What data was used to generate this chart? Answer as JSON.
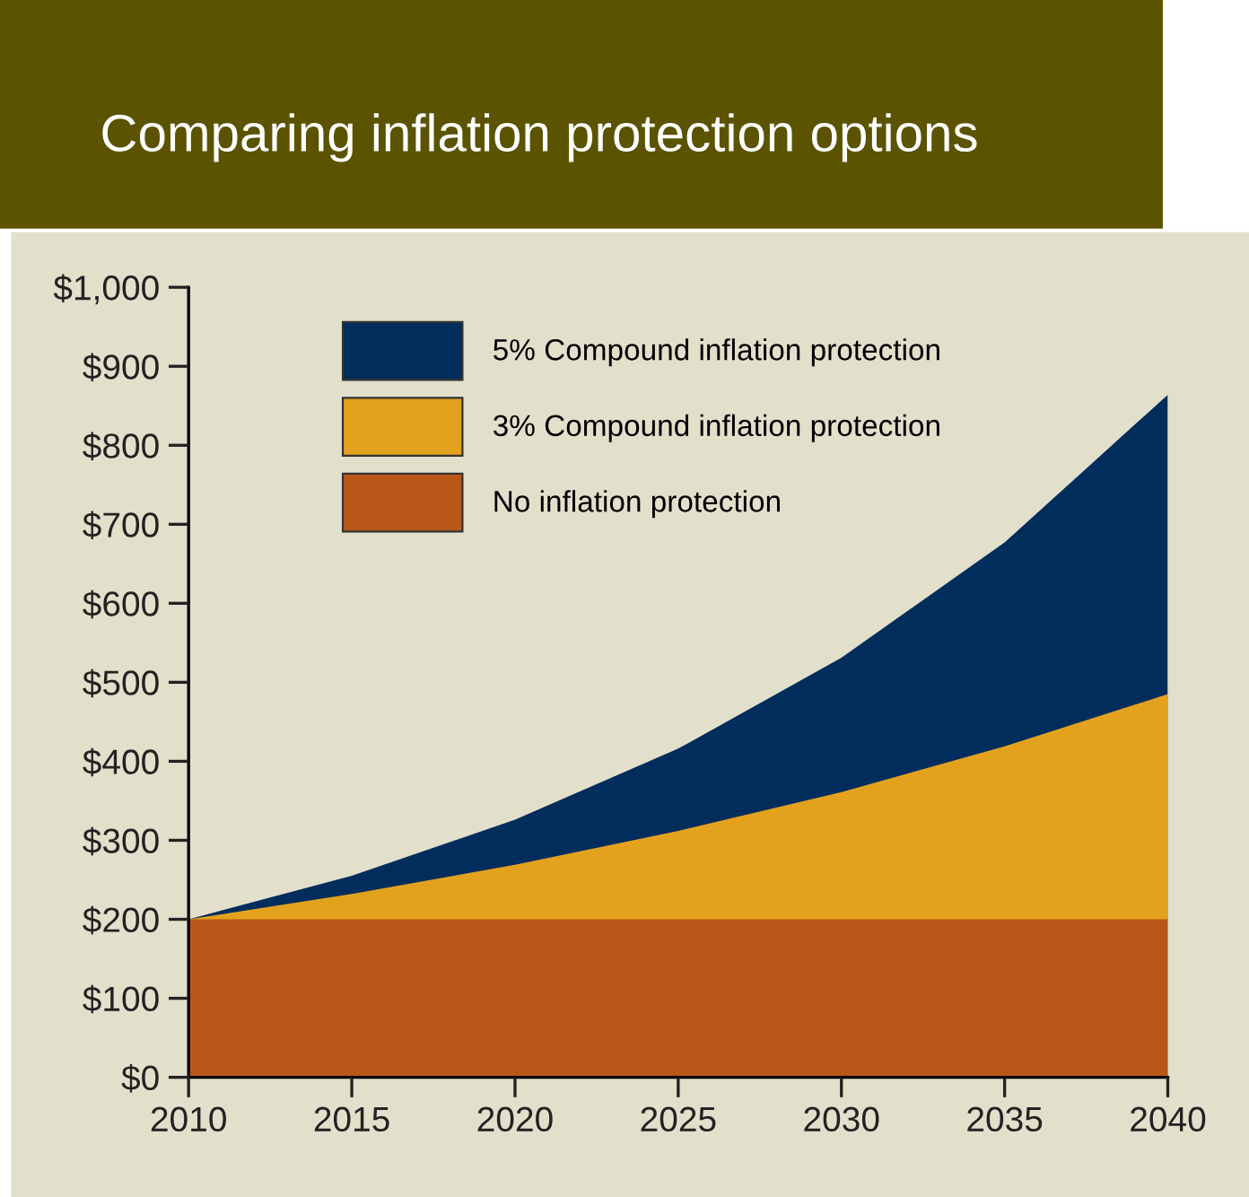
{
  "chart_data": {
    "type": "area",
    "title": "Comparing inflation protection options",
    "x": [
      2010,
      2015,
      2020,
      2025,
      2030,
      2035,
      2040
    ],
    "series": [
      {
        "name": "5% Compound inflation protection",
        "color": "#002d5c",
        "values": [
          200,
          255,
          326,
          416,
          531,
          677,
          864
        ]
      },
      {
        "name": "3% Compound inflation protection",
        "color": "#e3a21e",
        "values": [
          200,
          232,
          269,
          312,
          361,
          419,
          485
        ]
      },
      {
        "name": "No inflation protection",
        "color": "#b95718",
        "values": [
          200,
          200,
          200,
          200,
          200,
          200,
          200
        ]
      }
    ],
    "xlim": [
      2010,
      2040
    ],
    "xticks": [
      2010,
      2015,
      2020,
      2025,
      2030,
      2035,
      2040
    ],
    "ylim": [
      0,
      1000
    ],
    "yticks": [
      {
        "value": 0,
        "label": "$0"
      },
      {
        "value": 100,
        "label": "$100"
      },
      {
        "value": 200,
        "label": "$200"
      },
      {
        "value": 300,
        "label": "$300"
      },
      {
        "value": 400,
        "label": "$400"
      },
      {
        "value": 500,
        "label": "$500"
      },
      {
        "value": 600,
        "label": "$600"
      },
      {
        "value": 700,
        "label": "$700"
      },
      {
        "value": 800,
        "label": "$800"
      },
      {
        "value": 900,
        "label": "$900"
      },
      {
        "value": 1000,
        "label": "$1,000"
      }
    ],
    "grid": false,
    "legend": "top left"
  }
}
